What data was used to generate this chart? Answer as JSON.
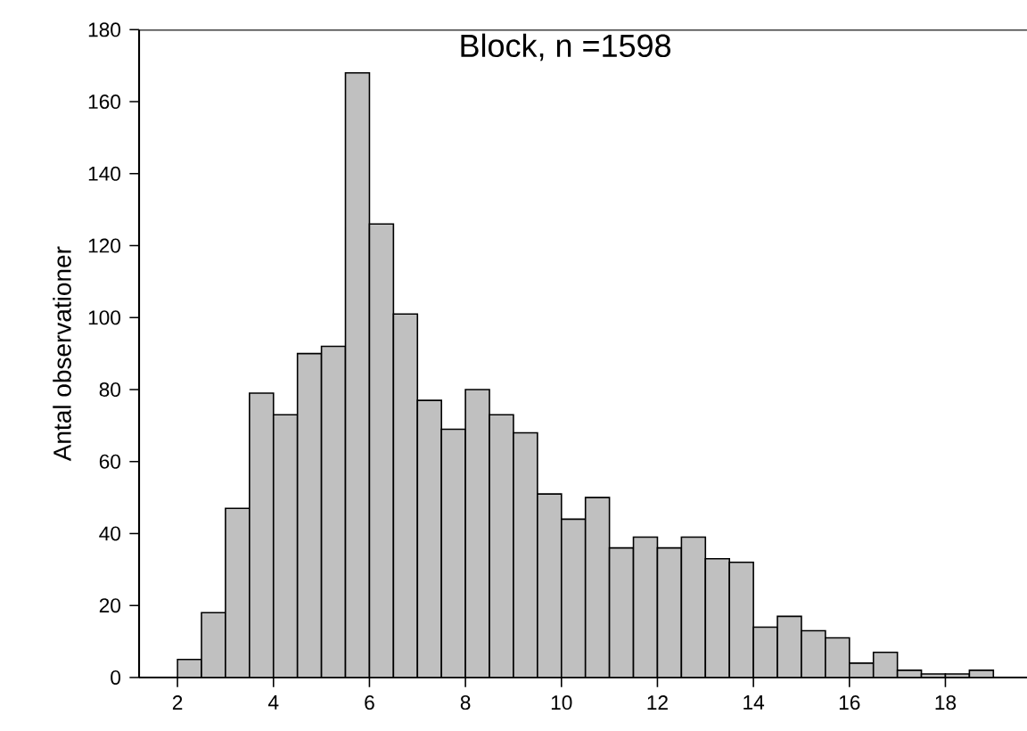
{
  "chart_data": {
    "type": "histogram",
    "title": "Block, n =1598",
    "ylabel": "Antal observationer",
    "bins": [
      2,
      2.5,
      3,
      3.5,
      4,
      4.5,
      5,
      5.5,
      6,
      6.5,
      7,
      7.5,
      8,
      8.5,
      9,
      9.5,
      10,
      10.5,
      11,
      11.5,
      12,
      12.5,
      13,
      13.5,
      14,
      14.5,
      15,
      15.5,
      16,
      16.5,
      17,
      17.5,
      18,
      18.5,
      19
    ],
    "values": [
      5,
      18,
      47,
      79,
      73,
      90,
      92,
      168,
      126,
      101,
      77,
      69,
      80,
      73,
      68,
      51,
      44,
      50,
      36,
      39,
      36,
      39,
      33,
      32,
      14,
      17,
      13,
      11,
      4,
      7,
      2,
      1,
      1,
      2
    ],
    "color": "#c0c0c0",
    "xlim": [
      1.2,
      19.7
    ],
    "ylim": [
      0,
      180
    ],
    "xticks": [
      2,
      4,
      6,
      8,
      10,
      12,
      14,
      16,
      18
    ],
    "yticks": [
      0,
      20,
      40,
      60,
      80,
      100,
      120,
      140,
      160,
      180
    ]
  }
}
